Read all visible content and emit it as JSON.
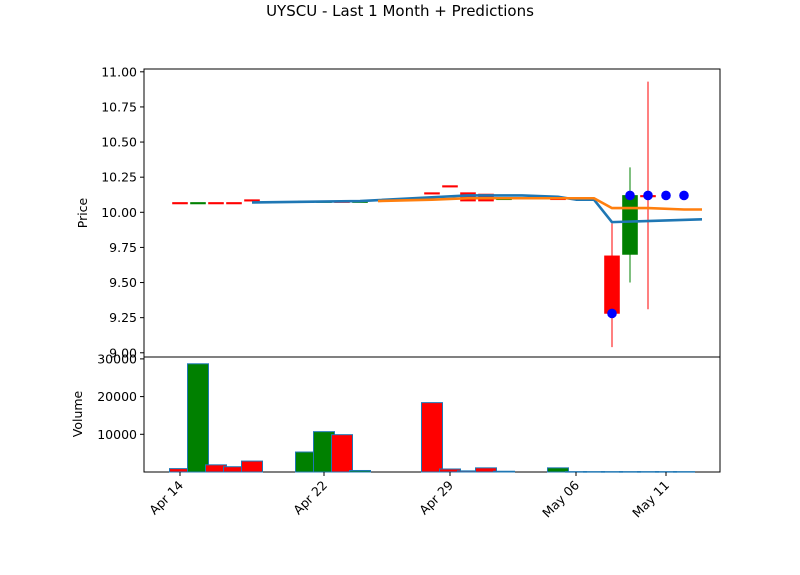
{
  "chart_data": {
    "type": "candlestick",
    "title": "UYSCU - Last 1 Month + Predictions",
    "price_panel": {
      "ylabel": "Price",
      "ylim": [
        8.97,
        11.02
      ],
      "yticks": [
        "9.00",
        "9.25",
        "9.50",
        "9.75",
        "10.00",
        "10.25",
        "10.50",
        "10.75",
        "11.00"
      ],
      "candles": [
        {
          "date": "2025-04-14",
          "open": 10.07,
          "close": 10.07,
          "high": 10.07,
          "low": 10.07,
          "direction": "down"
        },
        {
          "date": "2025-04-15",
          "open": 10.06,
          "close": 10.07,
          "high": 10.07,
          "low": 10.06,
          "direction": "up"
        },
        {
          "date": "2025-04-16",
          "open": 10.07,
          "close": 10.07,
          "high": 10.07,
          "low": 10.07,
          "direction": "down"
        },
        {
          "date": "2025-04-17",
          "open": 10.07,
          "close": 10.07,
          "high": 10.07,
          "low": 10.07,
          "direction": "down"
        },
        {
          "date": "2025-04-18",
          "open": 10.09,
          "close": 10.08,
          "high": 10.09,
          "low": 10.08,
          "direction": "down"
        },
        {
          "date": "2025-04-21",
          "open": 10.08,
          "close": 10.08,
          "high": 10.08,
          "low": 10.08,
          "direction": "up"
        },
        {
          "date": "2025-04-22",
          "open": 10.08,
          "close": 10.08,
          "high": 10.08,
          "low": 10.08,
          "direction": "up"
        },
        {
          "date": "2025-04-23",
          "open": 10.08,
          "close": 10.08,
          "high": 10.08,
          "low": 10.08,
          "direction": "down"
        },
        {
          "date": "2025-04-24",
          "open": 10.08,
          "close": 10.08,
          "high": 10.08,
          "low": 10.08,
          "direction": "up"
        },
        {
          "date": "2025-04-28",
          "open": 10.14,
          "close": 10.14,
          "high": 10.14,
          "low": 10.14,
          "direction": "down"
        },
        {
          "date": "2025-04-29",
          "open": 10.19,
          "close": 10.19,
          "high": 10.19,
          "low": 10.19,
          "direction": "down"
        },
        {
          "date": "2025-04-30",
          "open": 10.14,
          "close": 10.08,
          "high": 10.14,
          "low": 10.08,
          "direction": "down"
        },
        {
          "date": "2025-05-01",
          "open": 10.13,
          "close": 10.08,
          "high": 10.13,
          "low": 10.08,
          "direction": "down"
        },
        {
          "date": "2025-05-02",
          "open": 10.1,
          "close": 10.1,
          "high": 10.1,
          "low": 10.1,
          "direction": "up"
        },
        {
          "date": "2025-05-05",
          "open": 10.1,
          "close": 10.1,
          "high": 10.1,
          "low": 10.1,
          "direction": "down"
        },
        {
          "date": "2025-05-08",
          "open": 9.69,
          "close": 9.28,
          "high": 9.92,
          "low": 9.04,
          "direction": "down"
        },
        {
          "date": "2025-05-09",
          "open": 9.7,
          "close": 10.12,
          "high": 10.32,
          "low": 9.5,
          "direction": "up"
        },
        {
          "date": "2025-05-10",
          "open": 10.12,
          "close": 10.12,
          "high": 10.93,
          "low": 9.31,
          "direction": "down"
        }
      ],
      "moving_average_blue": [
        {
          "date": "2025-04-18",
          "value": 10.07
        },
        {
          "date": "2025-04-24",
          "value": 10.08
        },
        {
          "date": "2025-04-30",
          "value": 10.12
        },
        {
          "date": "2025-05-03",
          "value": 10.12
        },
        {
          "date": "2025-05-05",
          "value": 10.11
        },
        {
          "date": "2025-05-06",
          "value": 10.09
        },
        {
          "date": "2025-05-07",
          "value": 10.09
        },
        {
          "date": "2025-05-08",
          "value": 9.93
        },
        {
          "date": "2025-05-13",
          "value": 9.95
        }
      ],
      "moving_average_orange": [
        {
          "date": "2025-04-25",
          "value": 10.08
        },
        {
          "date": "2025-04-28",
          "value": 10.09
        },
        {
          "date": "2025-04-30",
          "value": 10.1
        },
        {
          "date": "2025-05-03",
          "value": 10.1
        },
        {
          "date": "2025-05-07",
          "value": 10.1
        },
        {
          "date": "2025-05-08",
          "value": 10.03
        },
        {
          "date": "2025-05-10",
          "value": 10.03
        },
        {
          "date": "2025-05-12",
          "value": 10.02
        },
        {
          "date": "2025-05-13",
          "value": 10.02
        }
      ],
      "prediction_points": [
        {
          "date": "2025-05-08",
          "value": 9.28
        },
        {
          "date": "2025-05-09",
          "value": 10.12
        },
        {
          "date": "2025-05-10",
          "value": 10.12
        },
        {
          "date": "2025-05-11",
          "value": 10.12
        },
        {
          "date": "2025-05-12",
          "value": 10.12
        }
      ]
    },
    "volume_panel": {
      "ylabel": "Volume",
      "ylim": [
        0,
        30500
      ],
      "yticks": [
        "10000",
        "20000",
        "30000"
      ],
      "bars": [
        {
          "date": "2025-04-14",
          "volume": 900,
          "direction": "down"
        },
        {
          "date": "2025-04-15",
          "volume": 28700,
          "direction": "up"
        },
        {
          "date": "2025-04-16",
          "volume": 1900,
          "direction": "down"
        },
        {
          "date": "2025-04-17",
          "volume": 1400,
          "direction": "down"
        },
        {
          "date": "2025-04-18",
          "volume": 2900,
          "direction": "down"
        },
        {
          "date": "2025-04-21",
          "volume": 5300,
          "direction": "up"
        },
        {
          "date": "2025-04-22",
          "volume": 10700,
          "direction": "up"
        },
        {
          "date": "2025-04-23",
          "volume": 9900,
          "direction": "down"
        },
        {
          "date": "2025-04-24",
          "volume": 400,
          "direction": "up"
        },
        {
          "date": "2025-04-28",
          "volume": 18400,
          "direction": "down"
        },
        {
          "date": "2025-04-29",
          "volume": 800,
          "direction": "down"
        },
        {
          "date": "2025-04-30",
          "volume": 300,
          "direction": "down"
        },
        {
          "date": "2025-05-01",
          "volume": 1100,
          "direction": "down"
        },
        {
          "date": "2025-05-02",
          "volume": 200,
          "direction": "down"
        },
        {
          "date": "2025-05-05",
          "volume": 1100,
          "direction": "up"
        },
        {
          "date": "2025-05-06",
          "volume": 100,
          "direction": "down"
        },
        {
          "date": "2025-05-07",
          "volume": 100,
          "direction": "down"
        },
        {
          "date": "2025-05-08",
          "volume": 100,
          "direction": "down"
        },
        {
          "date": "2025-05-09",
          "volume": 100,
          "direction": "up"
        },
        {
          "date": "2025-05-10",
          "volume": 100,
          "direction": "down"
        },
        {
          "date": "2025-05-11",
          "volume": 100,
          "direction": "down"
        },
        {
          "date": "2025-05-12",
          "volume": 100,
          "direction": "down"
        }
      ]
    },
    "x_axis": {
      "xlim": [
        "2025-04-12",
        "2025-05-14"
      ],
      "ticks": [
        {
          "date": "2025-04-14",
          "label": "Apr 14"
        },
        {
          "date": "2025-04-22",
          "label": "Apr 22"
        },
        {
          "date": "2025-04-29",
          "label": "Apr 29"
        },
        {
          "date": "2025-05-06",
          "label": "May 06"
        },
        {
          "date": "2025-05-11",
          "label": "May 11"
        }
      ]
    },
    "colors": {
      "up": "#008000",
      "down": "#ff0000",
      "ma_blue": "#1f77b4",
      "ma_orange": "#ff7f0e",
      "prediction": "#0000ff",
      "bar_edge": "#1f77b4"
    }
  }
}
